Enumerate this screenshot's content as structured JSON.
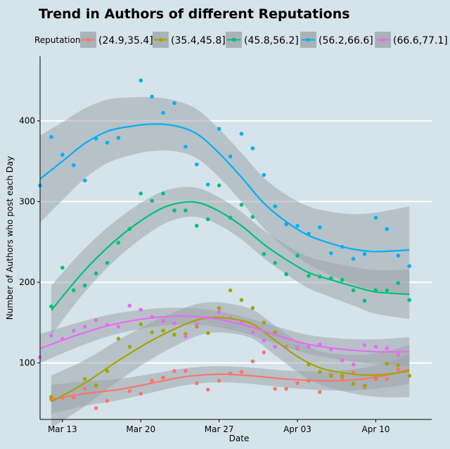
{
  "chart_data": {
    "type": "scatter",
    "title": "Trend in Authors of different  Reputations",
    "xlabel": "Date",
    "ylabel": "Number of Authors who post each Day",
    "legend_title": "Reputation",
    "legend_position": "top",
    "grid": true,
    "x_start": "2023-03-12",
    "x_ticks": [
      {
        "label": "Mar 13",
        "date": "2023-03-13"
      },
      {
        "label": "Mar 20",
        "date": "2023-03-20"
      },
      {
        "label": "Mar 27",
        "date": "2023-03-27"
      },
      {
        "label": "Apr 03",
        "date": "2023-04-03"
      },
      {
        "label": "Apr 10",
        "date": "2023-04-10"
      }
    ],
    "xlim": [
      "2023-03-11",
      "2023-04-15"
    ],
    "ylim": [
      30,
      480
    ],
    "y_ticks": [
      100,
      200,
      300,
      400
    ],
    "series": [
      {
        "name": "(24.9,35.4]",
        "color": "#f8766d",
        "points": [
          [
            0,
            55
          ],
          [
            1,
            57
          ],
          [
            2,
            57
          ],
          [
            3,
            68
          ],
          [
            4,
            44
          ],
          [
            5,
            53
          ],
          [
            7,
            65
          ],
          [
            8,
            62
          ],
          [
            9,
            78
          ],
          [
            10,
            82
          ],
          [
            11,
            90
          ],
          [
            12,
            90
          ],
          [
            13,
            75
          ],
          [
            14,
            67
          ],
          [
            15,
            78
          ],
          [
            16,
            87
          ],
          [
            17,
            89
          ],
          [
            18,
            102
          ],
          [
            19,
            113
          ],
          [
            20,
            68
          ],
          [
            21,
            68
          ],
          [
            22,
            75
          ],
          [
            23,
            78
          ],
          [
            24,
            64
          ],
          [
            25,
            85
          ],
          [
            26,
            80
          ],
          [
            27,
            88
          ],
          [
            28,
            70
          ],
          [
            29,
            80
          ],
          [
            30,
            80
          ],
          [
            31,
            92
          ]
        ],
        "fit": [
          [
            0,
            55
          ],
          [
            3,
            62
          ],
          [
            6,
            67
          ],
          [
            9,
            75
          ],
          [
            12,
            83
          ],
          [
            15,
            86
          ],
          [
            18,
            84
          ],
          [
            21,
            80
          ],
          [
            24,
            78
          ],
          [
            27,
            79
          ],
          [
            30,
            85
          ],
          [
            32,
            92
          ]
        ],
        "band": 10
      },
      {
        "name": "(35.4,45.8]",
        "color": "#a3a500",
        "points": [
          [
            0,
            58
          ],
          [
            3,
            80
          ],
          [
            4,
            72
          ],
          [
            5,
            90
          ],
          [
            6,
            130
          ],
          [
            7,
            120
          ],
          [
            8,
            148
          ],
          [
            9,
            138
          ],
          [
            10,
            140
          ],
          [
            11,
            135
          ],
          [
            12,
            136
          ],
          [
            13,
            145
          ],
          [
            14,
            137
          ],
          [
            15,
            168
          ],
          [
            16,
            190
          ],
          [
            17,
            178
          ],
          [
            18,
            168
          ],
          [
            19,
            150
          ],
          [
            20,
            138
          ],
          [
            21,
            120
          ],
          [
            22,
            118
          ],
          [
            23,
            98
          ],
          [
            24,
            89
          ],
          [
            25,
            84
          ],
          [
            26,
            84
          ],
          [
            27,
            74
          ],
          [
            28,
            72
          ],
          [
            29,
            83
          ],
          [
            30,
            99
          ],
          [
            31,
            97
          ],
          [
            32,
            84
          ]
        ],
        "fit": [
          [
            0,
            52
          ],
          [
            3,
            75
          ],
          [
            6,
            103
          ],
          [
            9,
            128
          ],
          [
            12,
            148
          ],
          [
            14,
            156
          ],
          [
            16,
            155
          ],
          [
            18,
            148
          ],
          [
            20,
            128
          ],
          [
            22,
            108
          ],
          [
            24,
            94
          ],
          [
            26,
            88
          ],
          [
            28,
            85
          ],
          [
            30,
            86
          ],
          [
            32,
            90
          ]
        ],
        "band": 18
      },
      {
        "name": "(45.8,56.2]",
        "color": "#00bf7d",
        "points": [
          [
            0,
            170
          ],
          [
            1,
            218
          ],
          [
            2,
            190
          ],
          [
            3,
            196
          ],
          [
            4,
            211
          ],
          [
            5,
            224
          ],
          [
            6,
            249
          ],
          [
            7,
            266
          ],
          [
            8,
            310
          ],
          [
            9,
            301
          ],
          [
            10,
            310
          ],
          [
            11,
            289
          ],
          [
            12,
            289
          ],
          [
            13,
            270
          ],
          [
            14,
            278
          ],
          [
            15,
            320
          ],
          [
            16,
            280
          ],
          [
            17,
            296
          ],
          [
            18,
            281
          ],
          [
            19,
            235
          ],
          [
            20,
            224
          ],
          [
            21,
            210
          ],
          [
            22,
            233
          ],
          [
            23,
            208
          ],
          [
            24,
            207
          ],
          [
            25,
            205
          ],
          [
            26,
            203
          ],
          [
            27,
            190
          ],
          [
            28,
            177
          ],
          [
            29,
            190
          ],
          [
            30,
            190
          ],
          [
            31,
            199
          ],
          [
            32,
            178
          ]
        ],
        "fit": [
          [
            0,
            165
          ],
          [
            3,
            215
          ],
          [
            6,
            255
          ],
          [
            9,
            285
          ],
          [
            11,
            297
          ],
          [
            13,
            299
          ],
          [
            15,
            288
          ],
          [
            17,
            270
          ],
          [
            19,
            247
          ],
          [
            21,
            228
          ],
          [
            23,
            212
          ],
          [
            25,
            203
          ],
          [
            27,
            195
          ],
          [
            29,
            188
          ],
          [
            32,
            185
          ]
        ],
        "band": 17
      },
      {
        "name": "(56.2,66.6]",
        "color": "#00b0f6",
        "points": [
          [
            -1,
            320
          ],
          [
            0,
            380
          ],
          [
            1,
            358
          ],
          [
            2,
            345
          ],
          [
            3,
            326
          ],
          [
            4,
            378
          ],
          [
            5,
            373
          ],
          [
            6,
            379
          ],
          [
            8,
            450
          ],
          [
            9,
            430
          ],
          [
            10,
            410
          ],
          [
            11,
            422
          ],
          [
            12,
            368
          ],
          [
            13,
            346
          ],
          [
            14,
            321
          ],
          [
            15,
            390
          ],
          [
            16,
            356
          ],
          [
            17,
            384
          ],
          [
            18,
            366
          ],
          [
            19,
            333
          ],
          [
            20,
            294
          ],
          [
            21,
            272
          ],
          [
            22,
            270
          ],
          [
            23,
            260
          ],
          [
            24,
            268
          ],
          [
            25,
            236
          ],
          [
            26,
            244
          ],
          [
            27,
            229
          ],
          [
            28,
            235
          ],
          [
            29,
            280
          ],
          [
            30,
            266
          ],
          [
            31,
            233
          ],
          [
            32,
            220
          ]
        ],
        "fit": [
          [
            -1,
            328
          ],
          [
            1,
            350
          ],
          [
            3,
            372
          ],
          [
            5,
            387
          ],
          [
            7,
            393
          ],
          [
            9,
            396
          ],
          [
            11,
            394
          ],
          [
            13,
            384
          ],
          [
            15,
            360
          ],
          [
            17,
            330
          ],
          [
            19,
            298
          ],
          [
            21,
            275
          ],
          [
            23,
            258
          ],
          [
            25,
            248
          ],
          [
            27,
            241
          ],
          [
            29,
            238
          ],
          [
            32,
            240
          ]
        ],
        "band": 30
      },
      {
        "name": "(66.6,77.1]",
        "color": "#e76bf3",
        "points": [
          [
            -1,
            107
          ],
          [
            0,
            134
          ],
          [
            1,
            130
          ],
          [
            2,
            140
          ],
          [
            3,
            145
          ],
          [
            4,
            153
          ],
          [
            5,
            147
          ],
          [
            6,
            145
          ],
          [
            7,
            171
          ],
          [
            8,
            166
          ],
          [
            9,
            157
          ],
          [
            10,
            152
          ],
          [
            11,
            149
          ],
          [
            12,
            133
          ],
          [
            13,
            148
          ],
          [
            14,
            156
          ],
          [
            15,
            163
          ],
          [
            16,
            156
          ],
          [
            17,
            150
          ],
          [
            18,
            138
          ],
          [
            19,
            128
          ],
          [
            20,
            120
          ],
          [
            21,
            119
          ],
          [
            22,
            119
          ],
          [
            23,
            120
          ],
          [
            24,
            123
          ],
          [
            25,
            117
          ],
          [
            26,
            103
          ],
          [
            27,
            98
          ],
          [
            28,
            122
          ],
          [
            29,
            120
          ],
          [
            30,
            118
          ],
          [
            31,
            110
          ]
        ],
        "fit": [
          [
            -1,
            118
          ],
          [
            2,
            133
          ],
          [
            5,
            146
          ],
          [
            8,
            154
          ],
          [
            11,
            158
          ],
          [
            14,
            156
          ],
          [
            17,
            148
          ],
          [
            20,
            135
          ],
          [
            23,
            123
          ],
          [
            26,
            117
          ],
          [
            29,
            114
          ],
          [
            32,
            114
          ]
        ],
        "band": 10
      }
    ]
  }
}
